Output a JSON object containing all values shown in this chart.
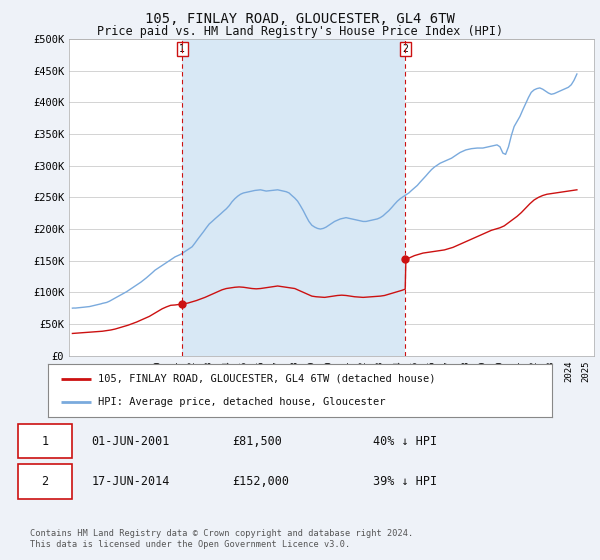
{
  "title": "105, FINLAY ROAD, GLOUCESTER, GL4 6TW",
  "subtitle": "Price paid vs. HM Land Registry's House Price Index (HPI)",
  "ylabel_ticks": [
    "£0",
    "£50K",
    "£100K",
    "£150K",
    "£200K",
    "£250K",
    "£300K",
    "£350K",
    "£400K",
    "£450K",
    "£500K"
  ],
  "ytick_values": [
    0,
    50000,
    100000,
    150000,
    200000,
    250000,
    300000,
    350000,
    400000,
    450000,
    500000
  ],
  "xlim_start": 1994.8,
  "xlim_end": 2025.5,
  "ylim": [
    0,
    500000
  ],
  "background_color": "#eef2f8",
  "plot_bg_color": "#ffffff",
  "shade_color": "#d8e8f5",
  "grid_color": "#cccccc",
  "hpi_color": "#7aaadd",
  "price_color": "#cc1111",
  "vline_color": "#cc1111",
  "marker1_year": 2001.42,
  "marker2_year": 2014.46,
  "sale1_price": 81500,
  "sale2_price": 152000,
  "legend_label_red": "105, FINLAY ROAD, GLOUCESTER, GL4 6TW (detached house)",
  "legend_label_blue": "HPI: Average price, detached house, Gloucester",
  "table_row1": [
    "1",
    "01-JUN-2001",
    "£81,500",
    "40% ↓ HPI"
  ],
  "table_row2": [
    "2",
    "17-JUN-2014",
    "£152,000",
    "39% ↓ HPI"
  ],
  "footer": "Contains HM Land Registry data © Crown copyright and database right 2024.\nThis data is licensed under the Open Government Licence v3.0.",
  "title_fontsize": 10,
  "subtitle_fontsize": 8.5,
  "tick_fontsize": 7.5,
  "hpi_data_x": [
    1995.0,
    1995.08,
    1995.17,
    1995.25,
    1995.33,
    1995.42,
    1995.5,
    1995.58,
    1995.67,
    1995.75,
    1995.83,
    1995.92,
    1996.0,
    1996.08,
    1996.17,
    1996.25,
    1996.33,
    1996.42,
    1996.5,
    1996.58,
    1996.67,
    1996.75,
    1996.83,
    1996.92,
    1997.0,
    1997.17,
    1997.33,
    1997.5,
    1997.67,
    1997.83,
    1998.0,
    1998.17,
    1998.33,
    1998.5,
    1998.67,
    1998.83,
    1999.0,
    1999.17,
    1999.33,
    1999.5,
    1999.67,
    1999.83,
    2000.0,
    2000.17,
    2000.33,
    2000.5,
    2000.67,
    2000.83,
    2001.0,
    2001.17,
    2001.33,
    2001.5,
    2001.67,
    2001.83,
    2002.0,
    2002.17,
    2002.33,
    2002.5,
    2002.67,
    2002.83,
    2003.0,
    2003.17,
    2003.33,
    2003.5,
    2003.67,
    2003.83,
    2004.0,
    2004.17,
    2004.33,
    2004.5,
    2004.67,
    2004.83,
    2005.0,
    2005.17,
    2005.33,
    2005.5,
    2005.67,
    2005.83,
    2006.0,
    2006.17,
    2006.33,
    2006.5,
    2006.67,
    2006.83,
    2007.0,
    2007.17,
    2007.33,
    2007.5,
    2007.67,
    2007.83,
    2008.0,
    2008.17,
    2008.33,
    2008.5,
    2008.67,
    2008.83,
    2009.0,
    2009.17,
    2009.33,
    2009.5,
    2009.67,
    2009.83,
    2010.0,
    2010.17,
    2010.33,
    2010.5,
    2010.67,
    2010.83,
    2011.0,
    2011.17,
    2011.33,
    2011.5,
    2011.67,
    2011.83,
    2012.0,
    2012.17,
    2012.33,
    2012.5,
    2012.67,
    2012.83,
    2013.0,
    2013.17,
    2013.33,
    2013.5,
    2013.67,
    2013.83,
    2014.0,
    2014.17,
    2014.33,
    2014.5,
    2014.67,
    2014.83,
    2015.0,
    2015.17,
    2015.33,
    2015.5,
    2015.67,
    2015.83,
    2016.0,
    2016.17,
    2016.33,
    2016.5,
    2016.67,
    2016.83,
    2017.0,
    2017.17,
    2017.33,
    2017.5,
    2017.67,
    2017.83,
    2018.0,
    2018.17,
    2018.33,
    2018.5,
    2018.67,
    2018.83,
    2019.0,
    2019.17,
    2019.33,
    2019.5,
    2019.67,
    2019.83,
    2020.0,
    2020.17,
    2020.33,
    2020.5,
    2020.67,
    2020.83,
    2021.0,
    2021.17,
    2021.33,
    2021.5,
    2021.67,
    2021.83,
    2022.0,
    2022.17,
    2022.33,
    2022.5,
    2022.67,
    2022.83,
    2023.0,
    2023.17,
    2023.33,
    2023.5,
    2023.67,
    2023.83,
    2024.0,
    2024.17,
    2024.33,
    2024.5
  ],
  "hpi_data_y": [
    75000,
    75200,
    75100,
    75300,
    75500,
    75800,
    76000,
    76200,
    76500,
    76800,
    77000,
    77200,
    77500,
    78000,
    78500,
    79000,
    79500,
    80000,
    80500,
    81000,
    81800,
    82500,
    83000,
    83500,
    84000,
    86000,
    88500,
    91000,
    93500,
    96000,
    98500,
    101000,
    104000,
    107000,
    110000,
    113000,
    116000,
    119500,
    123000,
    127000,
    131000,
    135000,
    138000,
    141000,
    144000,
    147000,
    150000,
    153000,
    156000,
    158000,
    160000,
    163000,
    166000,
    169000,
    172000,
    178000,
    184000,
    190000,
    196000,
    202000,
    208000,
    212000,
    216000,
    220000,
    224000,
    228000,
    232000,
    237000,
    243000,
    248000,
    252000,
    255000,
    257000,
    258000,
    259000,
    260000,
    261000,
    261500,
    262000,
    261000,
    260000,
    260500,
    261000,
    261500,
    262000,
    261000,
    260000,
    259000,
    257000,
    253000,
    249000,
    244000,
    237000,
    229000,
    220000,
    212000,
    206000,
    203000,
    201000,
    200000,
    201000,
    203000,
    206000,
    209000,
    212000,
    214000,
    216000,
    217000,
    218000,
    217000,
    216000,
    215000,
    214000,
    213000,
    212000,
    212000,
    213000,
    214000,
    215000,
    216000,
    218000,
    221000,
    225000,
    229000,
    234000,
    239000,
    244000,
    248000,
    251000,
    254000,
    257000,
    261000,
    265000,
    269000,
    274000,
    279000,
    284000,
    289000,
    294000,
    298000,
    301000,
    304000,
    306000,
    308000,
    310000,
    312000,
    315000,
    318000,
    321000,
    323000,
    325000,
    326000,
    327000,
    327500,
    328000,
    328000,
    328000,
    329000,
    330000,
    331000,
    332000,
    333000,
    330000,
    320000,
    318000,
    330000,
    348000,
    362000,
    370000,
    378000,
    388000,
    398000,
    408000,
    416000,
    420000,
    422000,
    423000,
    421000,
    418000,
    415000,
    413000,
    414000,
    416000,
    418000,
    420000,
    422000,
    424000,
    428000,
    435000,
    445000
  ],
  "price_data_x": [
    1995.0,
    1995.25,
    1995.5,
    1995.75,
    1996.0,
    1996.25,
    1996.5,
    1996.75,
    1997.0,
    1997.25,
    1997.5,
    1997.75,
    1998.0,
    1998.25,
    1998.5,
    1998.75,
    1999.0,
    1999.25,
    1999.5,
    1999.75,
    2000.0,
    2000.25,
    2000.5,
    2000.75,
    2001.0,
    2001.42,
    2001.5,
    2001.75,
    2002.0,
    2002.25,
    2002.5,
    2002.75,
    2003.0,
    2003.25,
    2003.5,
    2003.75,
    2004.0,
    2004.25,
    2004.5,
    2004.75,
    2005.0,
    2005.25,
    2005.5,
    2005.75,
    2006.0,
    2006.25,
    2006.5,
    2006.75,
    2007.0,
    2007.25,
    2007.5,
    2007.75,
    2008.0,
    2008.25,
    2008.5,
    2008.75,
    2009.0,
    2009.25,
    2009.5,
    2009.75,
    2010.0,
    2010.25,
    2010.5,
    2010.75,
    2011.0,
    2011.25,
    2011.5,
    2011.75,
    2012.0,
    2012.25,
    2012.5,
    2012.75,
    2013.0,
    2013.25,
    2013.5,
    2013.75,
    2014.0,
    2014.25,
    2014.46,
    2014.5,
    2014.75,
    2015.0,
    2015.25,
    2015.5,
    2015.75,
    2016.0,
    2016.25,
    2016.5,
    2016.75,
    2017.0,
    2017.25,
    2017.5,
    2017.75,
    2018.0,
    2018.25,
    2018.5,
    2018.75,
    2019.0,
    2019.25,
    2019.5,
    2019.75,
    2020.0,
    2020.25,
    2020.5,
    2020.75,
    2021.0,
    2021.25,
    2021.5,
    2021.75,
    2022.0,
    2022.25,
    2022.5,
    2022.75,
    2023.0,
    2023.25,
    2023.5,
    2023.75,
    2024.0,
    2024.25,
    2024.5
  ],
  "price_data_y": [
    35000,
    35500,
    36000,
    36500,
    37000,
    37500,
    38000,
    38500,
    39500,
    40500,
    42000,
    44000,
    46000,
    48000,
    50500,
    53000,
    56000,
    59000,
    62000,
    66000,
    70000,
    74000,
    77000,
    79500,
    80000,
    81500,
    82000,
    83000,
    85000,
    87000,
    89500,
    92000,
    95000,
    98000,
    101000,
    104000,
    106000,
    107000,
    108000,
    108500,
    108000,
    107000,
    106000,
    105500,
    106000,
    107000,
    108000,
    109000,
    110000,
    109000,
    108000,
    107000,
    106000,
    103000,
    100000,
    97000,
    94000,
    93000,
    92500,
    92000,
    93000,
    94000,
    95000,
    95500,
    95000,
    94000,
    93000,
    92500,
    92000,
    92500,
    93000,
    93500,
    94000,
    95000,
    97000,
    99000,
    101000,
    103000,
    105000,
    152000,
    155000,
    158000,
    160000,
    162000,
    163000,
    164000,
    165000,
    166000,
    167000,
    169000,
    171000,
    174000,
    177000,
    180000,
    183000,
    186000,
    189000,
    192000,
    195000,
    198000,
    200000,
    202000,
    205000,
    210000,
    215000,
    220000,
    226000,
    233000,
    240000,
    246000,
    250000,
    253000,
    255000,
    256000,
    257000,
    258000,
    259000,
    260000,
    261000,
    262000
  ]
}
